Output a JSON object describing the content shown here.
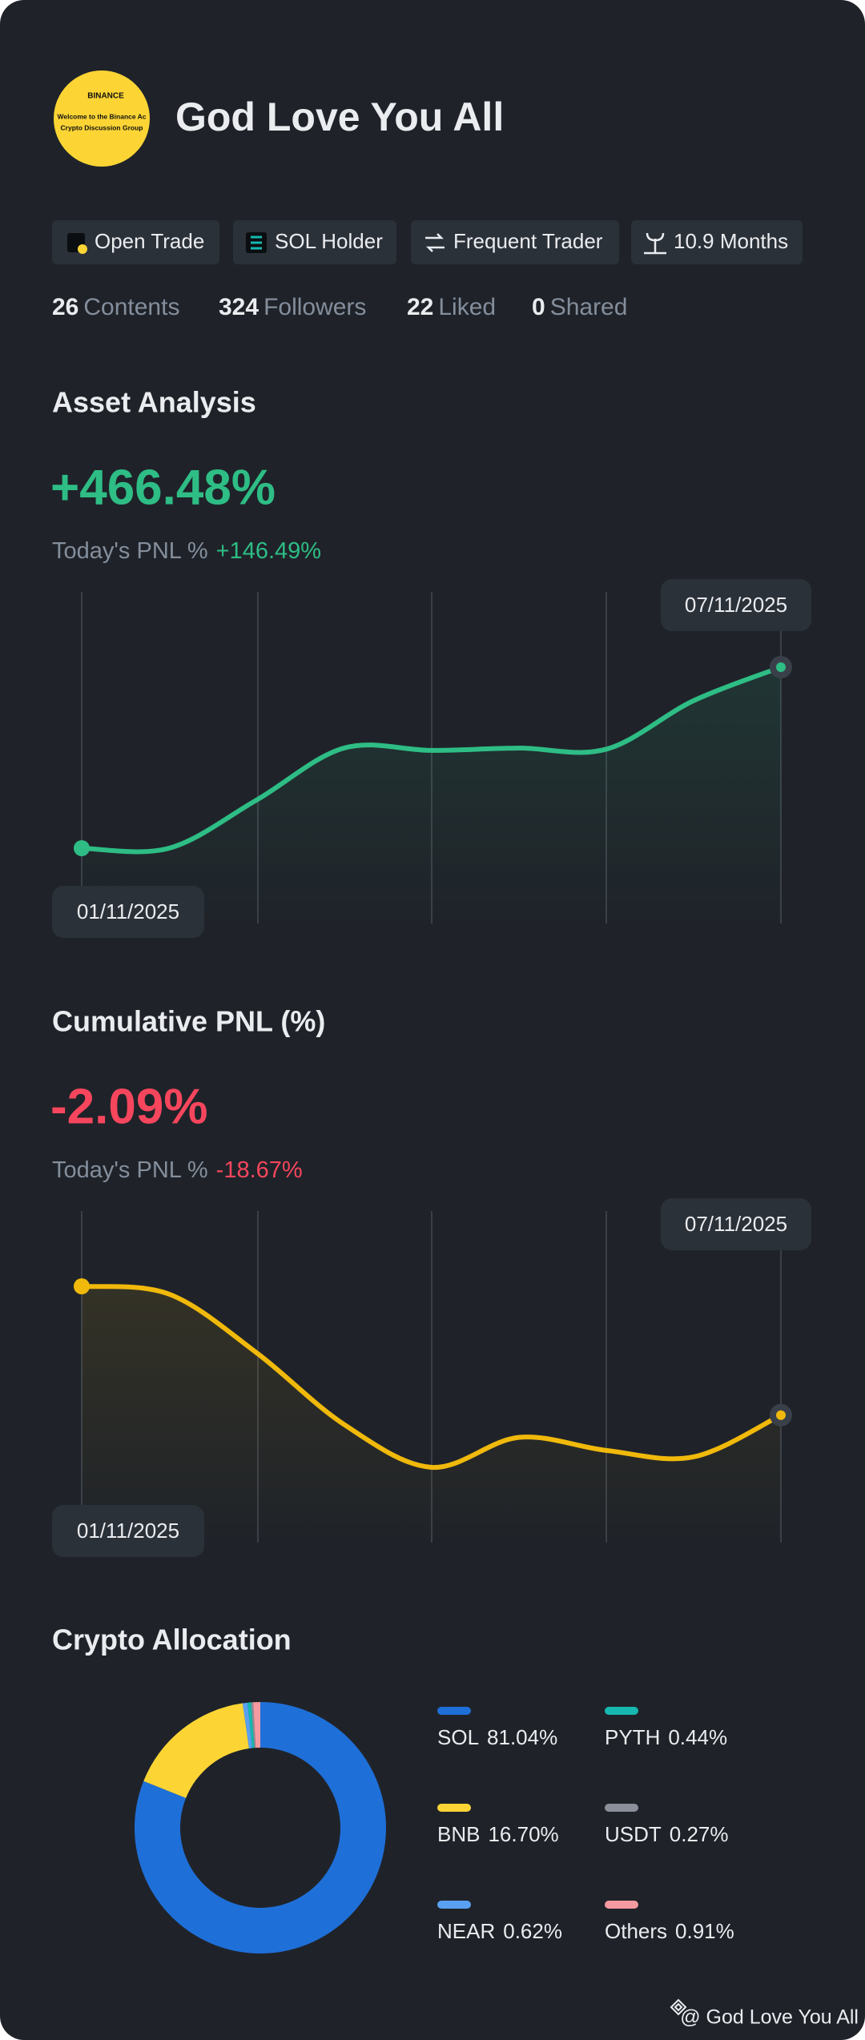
{
  "profile": {
    "avatar_text": [
      "BINANCE",
      "Welcome to the Binance Ac",
      "Crypto Discussion Group"
    ],
    "name": "God Love You All"
  },
  "badges": [
    "Open Trade",
    "SOL Holder",
    "Frequent Trader",
    "10.9 Months"
  ],
  "stats": [
    {
      "value": 26,
      "label": "Contents"
    },
    {
      "value": 324,
      "label": "Followers"
    },
    {
      "value": 22,
      "label": "Liked"
    },
    {
      "value": 0,
      "label": "Shared"
    }
  ],
  "asset_analysis": {
    "title": "Asset Analysis",
    "value": "+466.48%",
    "today_label": "Today's PNL %",
    "today_value": "+146.49%",
    "start_date": "01/11/2025",
    "end_date": "07/11/2025",
    "chart": {
      "type": "line",
      "color": "#2ebd85",
      "values": [
        0,
        0,
        124,
        258,
        252,
        258,
        255,
        380,
        466.48
      ]
    }
  },
  "cumulative_pnl": {
    "title": "Cumulative PNL (%)",
    "value": "-2.09%",
    "today_label": "Today's PNL %",
    "today_value": "-18.67%",
    "start_date": "01/11/2025",
    "end_date": "07/11/2025",
    "chart": {
      "type": "line",
      "color": "#f0b90b",
      "values": [
        17.7,
        16.5,
        7.5,
        -3.5,
        -10.1,
        -5.5,
        -7.5,
        -8.5,
        -2.09
      ]
    }
  },
  "crypto_allocation": {
    "title": "Crypto Allocation",
    "chart": {
      "type": "pie",
      "categories": [
        "SOL",
        "BNB",
        "NEAR",
        "PYTH",
        "USDT",
        "Others"
      ],
      "values": [
        81.04,
        16.7,
        0.62,
        0.44,
        0.27,
        0.91
      ],
      "value_labels": [
        "81.04%",
        "16.70%",
        "0.62%",
        "0.44%",
        "0.27%",
        "0.91%"
      ],
      "colors": [
        "#1f6fd8",
        "#fcd535",
        "#5aa0f2",
        "#16b8b0",
        "#8a8f99",
        "#f59aa0"
      ]
    }
  },
  "footer": "@ God Love You All"
}
